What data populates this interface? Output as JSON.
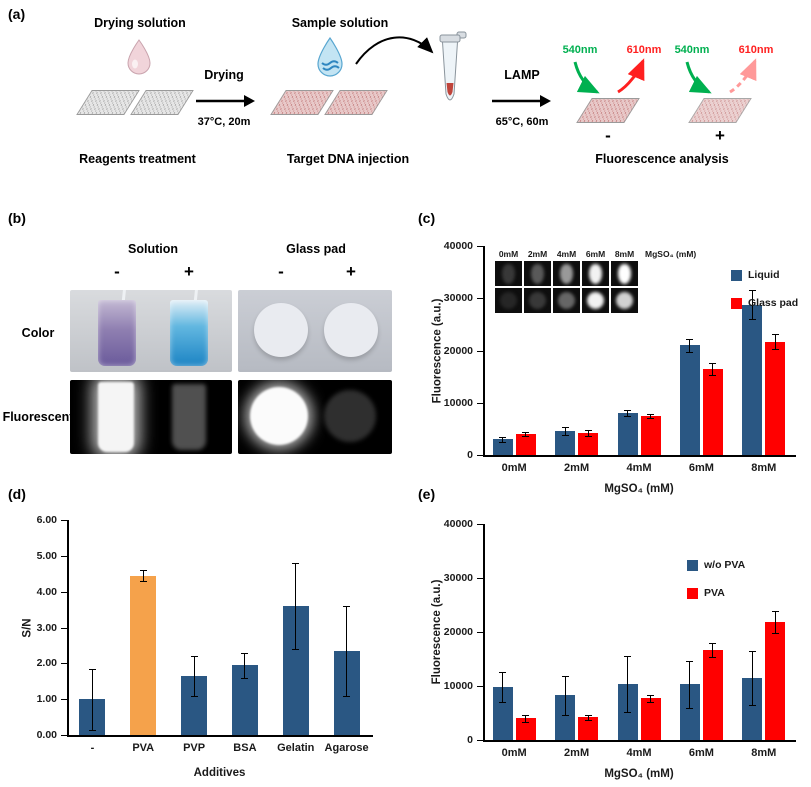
{
  "panel_a": {
    "label": "(a)",
    "drying_solution_label": "Drying solution",
    "sample_solution_label": "Sample solution",
    "step1_arrow_label": "Drying",
    "step1_condition": "37°C, 20m",
    "step2_arrow_label": "LAMP",
    "step2_condition": "65°C, 60m",
    "caption_left": "Reagents treatment",
    "caption_middle": "Target DNA injection",
    "caption_right": "Fluorescence analysis",
    "excitation_label": "540nm",
    "emission_label": "610nm",
    "negative_sign": "-",
    "positive_sign": "+",
    "excitation_color": "#00B050",
    "emission_color": "#FF2020"
  },
  "panel_b": {
    "label": "(b)",
    "col_group1": "Solution",
    "col_group2": "Glass pad",
    "minus": "-",
    "plus": "+",
    "row1": "Color",
    "row2": "Fluorescent"
  },
  "panel_c": {
    "label": "(c)"
  },
  "panel_d": {
    "label": "(d)"
  },
  "panel_e": {
    "label": "(e)"
  },
  "chart_data": [
    {
      "id": "c",
      "type": "bar",
      "categories": [
        "0mM",
        "2mM",
        "4mM",
        "6mM",
        "8mM"
      ],
      "series": [
        {
          "name": "Liquid",
          "color": "#2A5783",
          "values": [
            3000,
            4600,
            8000,
            21000,
            28800
          ],
          "errors": [
            500,
            700,
            600,
            1200,
            2700
          ]
        },
        {
          "name": "Glass pad",
          "color": "#FF0000",
          "values": [
            4000,
            4200,
            7500,
            16500,
            21700
          ],
          "errors": [
            400,
            500,
            400,
            1100,
            1500
          ]
        }
      ],
      "xlabel": "MgSO₄ (mM)",
      "ylabel": "Fluorescence (a.u.)",
      "ylim": [
        0,
        40000
      ],
      "yticks": [
        "0",
        "10000",
        "20000",
        "30000",
        "40000"
      ],
      "legend": true,
      "legend_position": "top-right-inside",
      "grid": false,
      "inset": {
        "labels": [
          "0mM",
          "2mM",
          "4mM",
          "6mM",
          "8mM"
        ],
        "title": "MgSO₄ (mM)",
        "liquid_intensity": [
          0.22,
          0.35,
          0.6,
          0.95,
          1.0
        ],
        "pad_intensity": [
          0.15,
          0.22,
          0.4,
          0.95,
          0.82
        ]
      }
    },
    {
      "id": "d",
      "type": "bar",
      "categories": [
        "-",
        "PVA",
        "PVP",
        "BSA",
        "Gelatin",
        "Agarose"
      ],
      "series": [
        {
          "name": "S/N",
          "values": [
            1.0,
            4.45,
            1.65,
            1.95,
            3.6,
            2.35
          ],
          "errors": [
            0.85,
            0.15,
            0.55,
            0.35,
            1.2,
            1.25
          ],
          "colors": [
            "#2A5783",
            "#F5A24B",
            "#2A5783",
            "#2A5783",
            "#2A5783",
            "#2A5783"
          ]
        }
      ],
      "xlabel": "Additives",
      "ylabel": "S/N",
      "ylim": [
        0,
        6
      ],
      "yticks": [
        "0.00",
        "1.00",
        "2.00",
        "3.00",
        "4.00",
        "5.00",
        "6.00"
      ],
      "legend": false,
      "grid": false
    },
    {
      "id": "e",
      "type": "bar",
      "categories": [
        "0mM",
        "2mM",
        "4mM",
        "6mM",
        "8mM"
      ],
      "series": [
        {
          "name": "w/o PVA",
          "color": "#2A5783",
          "values": [
            9800,
            8300,
            10400,
            10300,
            11500
          ],
          "errors": [
            2800,
            3600,
            5200,
            4300,
            5000
          ]
        },
        {
          "name": "PVA",
          "color": "#FF0000",
          "values": [
            4000,
            4200,
            7700,
            16700,
            21800
          ],
          "errors": [
            600,
            500,
            700,
            1300,
            2000
          ]
        }
      ],
      "xlabel": "MgSO₄ (mM)",
      "ylabel": "Fluorescence (a.u.)",
      "ylim": [
        0,
        40000
      ],
      "yticks": [
        "0",
        "10000",
        "20000",
        "30000",
        "40000"
      ],
      "legend": true,
      "legend_position": "top-right-inside",
      "grid": false
    }
  ]
}
